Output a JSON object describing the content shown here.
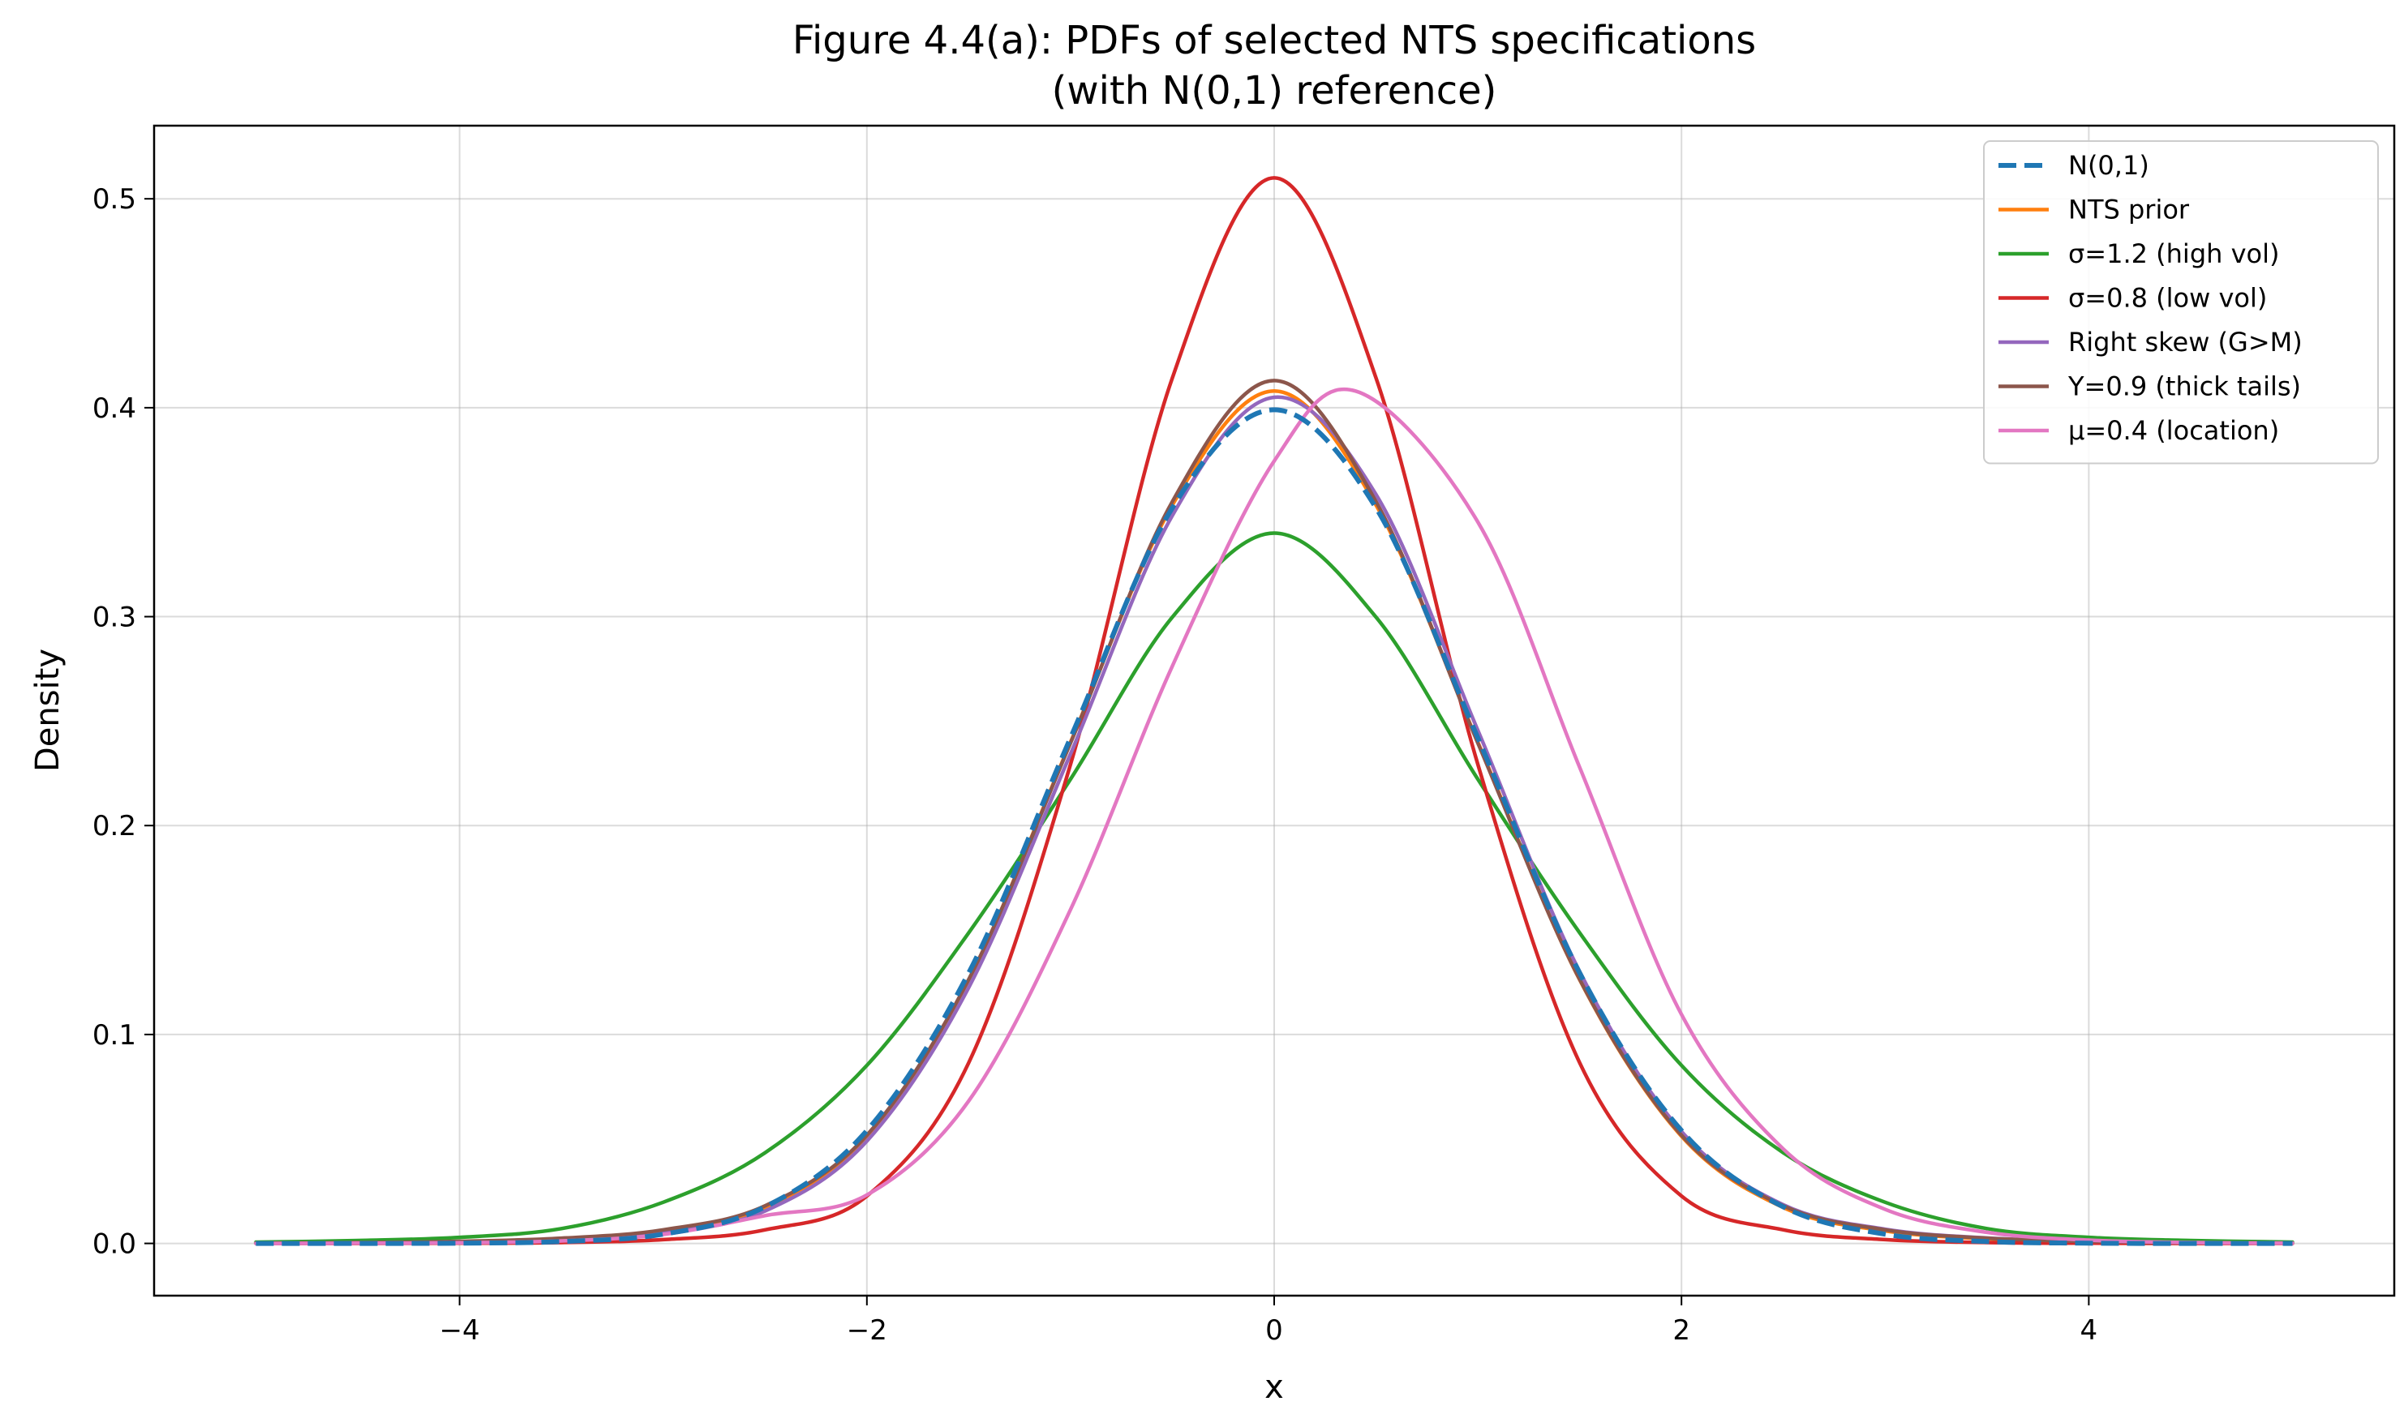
{
  "chart_data": {
    "type": "line",
    "title": "Figure 4.4(a): PDFs of selected NTS specifications",
    "subtitle": "(with N(0,1) reference)",
    "xlabel": "x",
    "ylabel": "Density",
    "xlim": [
      -5.5,
      5.5
    ],
    "ylim": [
      -0.025,
      0.535
    ],
    "xticks": [
      -4,
      -2,
      0,
      2,
      4
    ],
    "xtick_labels": [
      "−4",
      "−2",
      "0",
      "2",
      "4"
    ],
    "yticks": [
      0.0,
      0.1,
      0.2,
      0.3,
      0.4,
      0.5
    ],
    "ytick_labels": [
      "0.0",
      "0.1",
      "0.2",
      "0.3",
      "0.4",
      "0.5"
    ],
    "grid": true,
    "legend_position": "top-right",
    "x_range": [
      -5,
      5
    ],
    "series": [
      {
        "name": "N(0,1)",
        "color": "#1f77b4",
        "dashed": true,
        "x": [
          -5,
          -4.5,
          -4,
          -3.5,
          -3,
          -2.5,
          -2,
          -1.5,
          -1,
          -0.5,
          0,
          0.5,
          1,
          1.5,
          2,
          2.5,
          3,
          3.5,
          4,
          4.5,
          5
        ],
        "y": [
          0.0,
          0.0,
          0.0001,
          0.0009,
          0.0044,
          0.0175,
          0.054,
          0.1295,
          0.242,
          0.3521,
          0.399,
          0.3521,
          0.242,
          0.1295,
          0.054,
          0.0175,
          0.0044,
          0.0009,
          0.0001,
          0.0,
          0.0
        ]
      },
      {
        "name": "NTS prior",
        "color": "#ff7f0e",
        "dashed": false,
        "x": [
          -5,
          -4.5,
          -4,
          -3.5,
          -3,
          -2.5,
          -2,
          -1.5,
          -1,
          -0.5,
          0,
          0.5,
          1,
          1.5,
          2,
          2.5,
          3,
          3.5,
          4,
          4.5,
          5
        ],
        "y": [
          0.0001,
          0.0003,
          0.0008,
          0.0022,
          0.006,
          0.0172,
          0.0513,
          0.1262,
          0.2399,
          0.3534,
          0.408,
          0.3534,
          0.2399,
          0.1262,
          0.0513,
          0.0172,
          0.006,
          0.0022,
          0.0008,
          0.0003,
          0.0001
        ]
      },
      {
        "name": "σ=1.2 (high vol)",
        "color": "#2ca02c",
        "dashed": false,
        "x": [
          -5,
          -4.5,
          -4,
          -3.5,
          -3,
          -2.5,
          -2,
          -1.5,
          -1,
          -0.5,
          0,
          0.5,
          1,
          1.5,
          2,
          2.5,
          3,
          3.5,
          4,
          4.5,
          5
        ],
        "y": [
          0.0006,
          0.0014,
          0.0029,
          0.0071,
          0.0197,
          0.0434,
          0.0852,
          0.1487,
          0.2222,
          0.2998,
          0.34,
          0.2998,
          0.2222,
          0.1487,
          0.0852,
          0.0434,
          0.0197,
          0.0071,
          0.0029,
          0.0014,
          0.0006
        ]
      },
      {
        "name": "σ=0.8 (low vol)",
        "color": "#d62728",
        "dashed": false,
        "x": [
          -5,
          -4.5,
          -4,
          -3.5,
          -3,
          -2.5,
          -2,
          -1.5,
          -1,
          -0.5,
          0,
          0.5,
          1,
          1.5,
          2,
          2.5,
          3,
          3.5,
          4,
          4.5,
          5
        ],
        "y": [
          0.0,
          0.0,
          0.0001,
          0.0004,
          0.0018,
          0.0065,
          0.0227,
          0.0865,
          0.2293,
          0.4143,
          0.51,
          0.4143,
          0.2293,
          0.0865,
          0.0227,
          0.0065,
          0.0018,
          0.0004,
          0.0001,
          0.0,
          0.0
        ]
      },
      {
        "name": "Right skew (G>M)",
        "color": "#9467bd",
        "dashed": false,
        "x": [
          -5,
          -4.5,
          -4,
          -3.5,
          -3,
          -2.5,
          -2,
          -1.5,
          -1,
          -0.5,
          0,
          0.5,
          1,
          1.5,
          2,
          2.5,
          3,
          3.5,
          4,
          4.5,
          5
        ],
        "y": [
          0.0001,
          0.0003,
          0.0007,
          0.0019,
          0.0052,
          0.0155,
          0.049,
          0.1225,
          0.2343,
          0.3484,
          0.405,
          0.3585,
          0.2456,
          0.1301,
          0.0536,
          0.0185,
          0.0068,
          0.0026,
          0.001,
          0.0004,
          0.0002
        ]
      },
      {
        "name": "Y=0.9 (thick tails)",
        "color": "#8c564b",
        "dashed": false,
        "x": [
          -5,
          -4.5,
          -4,
          -3.5,
          -3,
          -2.5,
          -2,
          -1.5,
          -1,
          -0.5,
          0,
          0.5,
          1,
          1.5,
          2,
          2.5,
          3,
          3.5,
          4,
          4.5,
          5
        ],
        "y": [
          0.0002,
          0.0004,
          0.001,
          0.0025,
          0.0065,
          0.018,
          0.0518,
          0.1264,
          0.2395,
          0.3551,
          0.413,
          0.3551,
          0.2395,
          0.1264,
          0.0518,
          0.018,
          0.0065,
          0.0025,
          0.001,
          0.0004,
          0.0002
        ]
      },
      {
        "name": "μ=0.4 (location)",
        "color": "#e377c2",
        "dashed": false,
        "x": [
          -5,
          -4.5,
          -4,
          -3.5,
          -3,
          -2.5,
          -2,
          -1.5,
          -1,
          -0.5,
          0,
          0.4,
          1,
          1.5,
          2,
          2.5,
          3,
          3.5,
          4,
          4.5,
          5
        ],
        "y": [
          0.0,
          0.0001,
          0.0003,
          0.0012,
          0.0043,
          0.0133,
          0.0232,
          0.0682,
          0.1598,
          0.2764,
          0.3745,
          0.408,
          0.3453,
          0.2279,
          0.1096,
          0.0452,
          0.0163,
          0.0053,
          0.0016,
          0.0004,
          0.0001
        ]
      }
    ]
  }
}
